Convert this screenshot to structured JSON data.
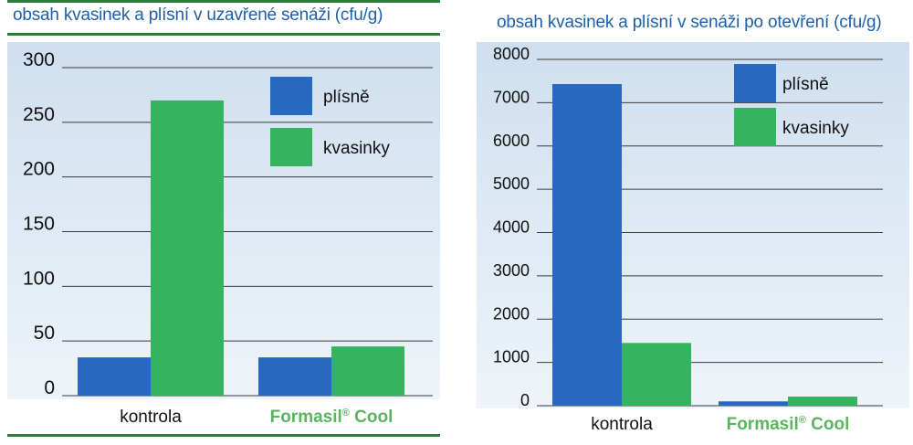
{
  "chart_data": [
    {
      "type": "bar",
      "title": "obsah kvasinek a plísní v uzavřené senáži (cfu/g)",
      "categories": [
        "kontrola",
        "Formasil® Cool"
      ],
      "series": [
        {
          "name": "plísně",
          "values": [
            35,
            35
          ],
          "color": "#2868c0"
        },
        {
          "name": "kvasinky",
          "values": [
            270,
            45
          ],
          "color": "#35b35e"
        }
      ],
      "ylim": [
        0,
        300
      ],
      "yticks": [
        0,
        50,
        100,
        150,
        200,
        250,
        300
      ],
      "grid": true,
      "legend": "top-right",
      "brand_color": "#5ab55e"
    },
    {
      "type": "bar",
      "title": "obsah kvasinek a plísní v senáži po otevření (cfu/g)",
      "categories": [
        "kontrola",
        "Formasil® Cool"
      ],
      "series": [
        {
          "name": "plísně",
          "values": [
            7430,
            100
          ],
          "color": "#2868c0"
        },
        {
          "name": "kvasinky",
          "values": [
            1450,
            210
          ],
          "color": "#35b35e"
        }
      ],
      "ylim": [
        0,
        8000
      ],
      "yticks": [
        0,
        1000,
        2000,
        3000,
        4000,
        5000,
        6000,
        7000,
        8000
      ],
      "grid": true,
      "legend": "top-right",
      "brand_color": "#5ab55e"
    }
  ]
}
